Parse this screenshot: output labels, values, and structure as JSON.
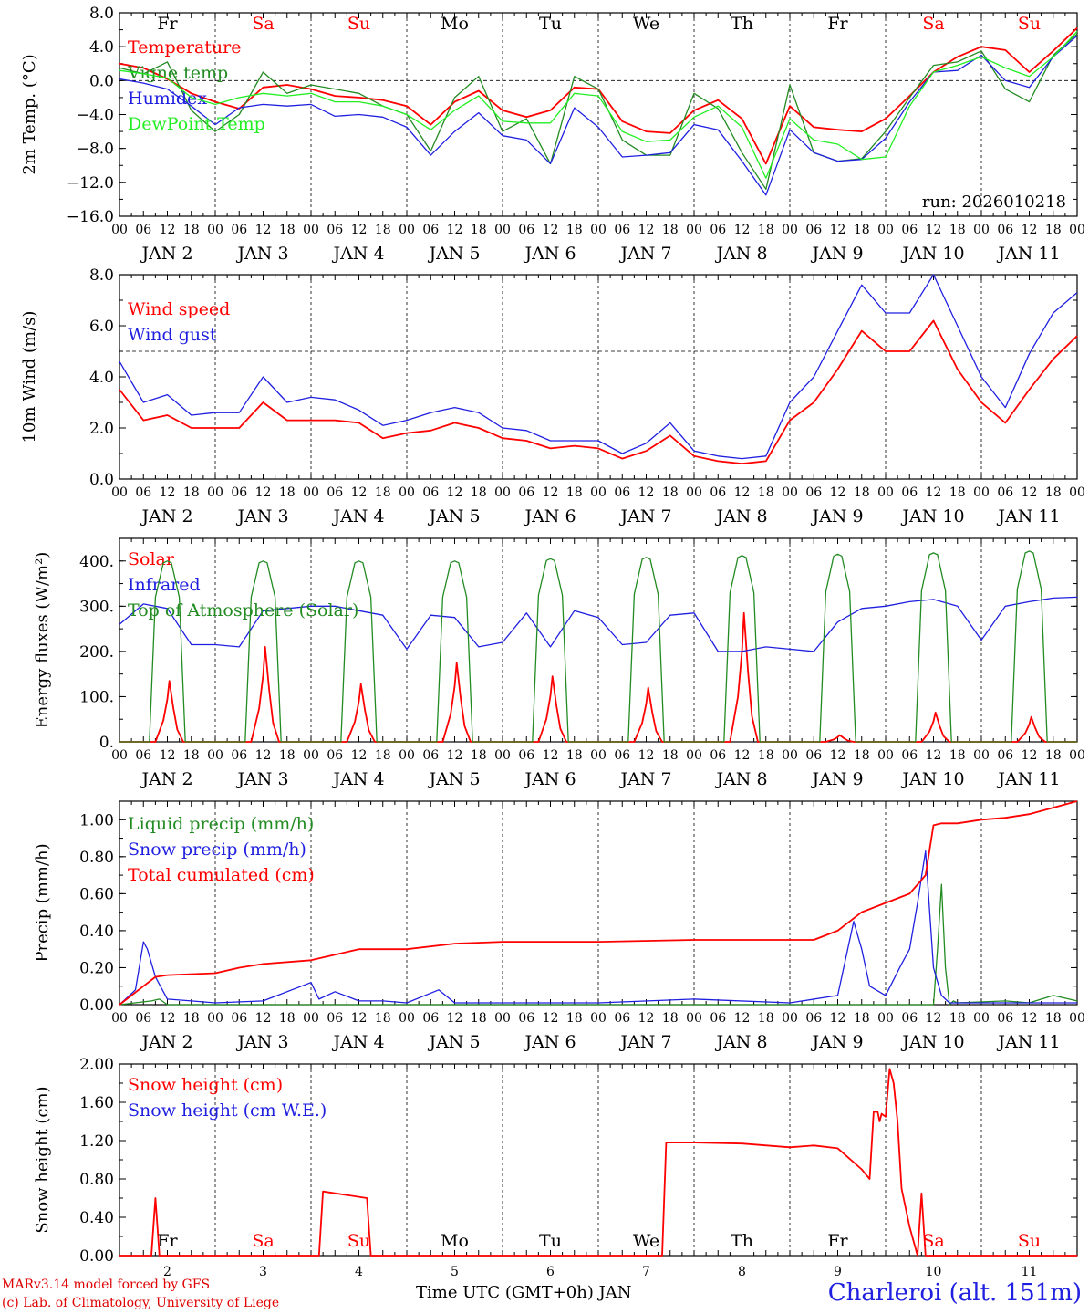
{
  "days": [
    {
      "label": "JAN 2",
      "dow": "Fr"
    },
    {
      "label": "JAN 3",
      "dow": "Sa"
    },
    {
      "label": "JAN 4",
      "dow": "Su"
    },
    {
      "label": "JAN 5",
      "dow": "Mo"
    },
    {
      "label": "JAN 6",
      "dow": "Tu"
    },
    {
      "label": "JAN 7",
      "dow": "We"
    },
    {
      "label": "JAN 8",
      "dow": "Th"
    },
    {
      "label": "JAN 9",
      "dow": "Fr"
    },
    {
      "label": "JAN 10",
      "dow": "Sa"
    },
    {
      "label": "JAN 11",
      "dow": "Su"
    }
  ],
  "weekend_days": [
    "Sa",
    "Su"
  ],
  "hour_ticks": [
    "00",
    "06",
    "12",
    "18"
  ],
  "colors": {
    "red": "#ff0000",
    "green": "#228b22",
    "blue": "#1f1fe0",
    "lightgreen": "#22ee22",
    "black": "#000000"
  },
  "chart_data": [
    {
      "type": "line",
      "id": "temp",
      "ylabel": "2m Temp. (°C)",
      "ylim": [
        -16,
        8
      ],
      "yticks": [
        "8.0",
        "4.0",
        "0.0",
        "−4.0",
        "−8.0",
        "−12.0",
        "−16.0"
      ],
      "ytick_values": [
        8,
        4,
        0,
        -4,
        -8,
        -12,
        -16
      ],
      "ref_line": 0,
      "annotation": "run: 2026010218",
      "series": [
        {
          "name": "Temperature",
          "color": "red",
          "x": [
            0,
            6,
            12,
            18,
            24,
            30,
            36,
            42,
            48,
            54,
            60,
            66,
            72,
            78,
            84,
            90,
            96,
            102,
            108,
            114,
            120,
            126,
            132,
            138,
            144,
            150,
            156,
            162,
            168,
            174,
            180,
            186,
            192,
            198,
            204,
            210,
            216,
            222,
            228,
            234,
            240
          ],
          "values": [
            2.0,
            1.5,
            0.2,
            -1.5,
            -2.5,
            -3.3,
            -0.8,
            -0.5,
            -1.0,
            -1.8,
            -2.0,
            -2.3,
            -3.0,
            -5.2,
            -2.5,
            -1.2,
            -3.5,
            -4.3,
            -3.5,
            -0.8,
            -1.0,
            -4.8,
            -6.0,
            -6.2,
            -3.5,
            -2.3,
            -4.5,
            -9.8,
            -3.0,
            -5.5,
            -5.8,
            -6.0,
            -4.5,
            -1.8,
            1.0,
            2.8,
            4.0,
            3.6,
            1.0,
            3.5,
            6.2
          ]
        },
        {
          "name": "Vigne temp",
          "color": "green",
          "x": [
            0,
            6,
            12,
            18,
            24,
            30,
            36,
            42,
            48,
            54,
            60,
            66,
            72,
            78,
            84,
            90,
            96,
            102,
            108,
            114,
            120,
            126,
            132,
            138,
            144,
            150,
            156,
            162,
            168,
            174,
            180,
            186,
            192,
            198,
            204,
            210,
            216,
            222,
            228,
            234,
            240
          ],
          "values": [
            1.5,
            0.8,
            2.2,
            -3.5,
            -6.0,
            -4.0,
            1.0,
            -1.5,
            -0.5,
            -1.0,
            -1.5,
            -3.0,
            -4.0,
            -8.3,
            -2.0,
            0.5,
            -6.0,
            -4.5,
            -9.8,
            0.5,
            -1.0,
            -7.0,
            -8.8,
            -8.8,
            -1.5,
            -3.3,
            -8.5,
            -12.8,
            -0.5,
            -8.5,
            -9.5,
            -9.2,
            -6.0,
            -2.0,
            1.8,
            2.2,
            3.5,
            -1.0,
            -2.5,
            3.0,
            5.5
          ]
        },
        {
          "name": "Humidex",
          "color": "blue",
          "x": [
            0,
            6,
            12,
            18,
            24,
            30,
            36,
            42,
            48,
            54,
            60,
            66,
            72,
            78,
            84,
            90,
            96,
            102,
            108,
            114,
            120,
            126,
            132,
            138,
            144,
            150,
            156,
            162,
            168,
            174,
            180,
            186,
            192,
            198,
            204,
            210,
            216,
            222,
            228,
            234,
            240
          ],
          "values": [
            0.2,
            -0.3,
            -1.0,
            -3.0,
            -5.2,
            -3.2,
            -2.8,
            -3.0,
            -2.8,
            -4.2,
            -4.0,
            -4.3,
            -5.5,
            -8.8,
            -6.0,
            -3.8,
            -6.5,
            -7.0,
            -9.8,
            -3.2,
            -5.5,
            -9.0,
            -8.8,
            -8.5,
            -5.2,
            -5.8,
            -9.5,
            -13.5,
            -5.8,
            -8.5,
            -9.5,
            -9.3,
            -6.8,
            -2.5,
            1.0,
            1.2,
            3.0,
            0.0,
            -0.8,
            2.8,
            5.3
          ]
        },
        {
          "name": "DewPoint Temp",
          "color": "lightgreen",
          "x": [
            0,
            6,
            12,
            18,
            24,
            30,
            36,
            42,
            48,
            54,
            60,
            66,
            72,
            78,
            84,
            90,
            96,
            102,
            108,
            114,
            120,
            126,
            132,
            138,
            144,
            150,
            156,
            162,
            168,
            174,
            180,
            186,
            192,
            198,
            204,
            210,
            216,
            222,
            228,
            234,
            240
          ],
          "values": [
            1.2,
            0.8,
            0.3,
            -2.0,
            -2.8,
            -2.0,
            -1.5,
            -1.8,
            -1.5,
            -2.5,
            -2.5,
            -3.0,
            -4.0,
            -5.8,
            -3.5,
            -1.8,
            -4.8,
            -5.0,
            -5.0,
            -1.5,
            -1.8,
            -6.0,
            -7.2,
            -7.0,
            -4.3,
            -3.0,
            -5.5,
            -11.5,
            -4.5,
            -7.0,
            -7.5,
            -9.3,
            -9.0,
            -3.0,
            1.0,
            1.8,
            2.8,
            1.5,
            0.5,
            2.8,
            5.8
          ]
        }
      ]
    },
    {
      "type": "line",
      "id": "wind",
      "ylabel": "10m Wind (m/s)",
      "ylim": [
        0,
        8
      ],
      "yticks": [
        "8.0",
        "6.0",
        "4.0",
        "2.0",
        "0.0"
      ],
      "ytick_values": [
        8,
        6,
        4,
        2,
        0
      ],
      "ref_line": 5,
      "series": [
        {
          "name": "Wind speed",
          "color": "red",
          "x": [
            0,
            6,
            12,
            18,
            24,
            30,
            36,
            42,
            48,
            54,
            60,
            66,
            72,
            78,
            84,
            90,
            96,
            102,
            108,
            114,
            120,
            126,
            132,
            138,
            144,
            150,
            156,
            162,
            168,
            174,
            180,
            186,
            192,
            198,
            204,
            210,
            216,
            222,
            228,
            234,
            240
          ],
          "values": [
            3.5,
            2.3,
            2.5,
            2.0,
            2.0,
            2.0,
            3.0,
            2.3,
            2.3,
            2.3,
            2.2,
            1.6,
            1.8,
            1.9,
            2.2,
            2.0,
            1.6,
            1.5,
            1.2,
            1.3,
            1.2,
            0.8,
            1.1,
            1.7,
            0.9,
            0.7,
            0.6,
            0.7,
            2.3,
            3.0,
            4.3,
            5.8,
            5.0,
            5.0,
            6.2,
            4.3,
            3.0,
            2.2,
            3.5,
            4.7,
            5.6
          ]
        },
        {
          "name": "Wind gust",
          "color": "blue",
          "x": [
            0,
            6,
            12,
            18,
            24,
            30,
            36,
            42,
            48,
            54,
            60,
            66,
            72,
            78,
            84,
            90,
            96,
            102,
            108,
            114,
            120,
            126,
            132,
            138,
            144,
            150,
            156,
            162,
            168,
            174,
            180,
            186,
            192,
            198,
            204,
            210,
            216,
            222,
            228,
            234,
            240
          ],
          "values": [
            4.6,
            3.0,
            3.3,
            2.5,
            2.6,
            2.6,
            4.0,
            3.0,
            3.2,
            3.1,
            2.7,
            2.1,
            2.3,
            2.6,
            2.8,
            2.6,
            2.0,
            1.9,
            1.5,
            1.5,
            1.5,
            1.0,
            1.4,
            2.2,
            1.1,
            0.9,
            0.8,
            0.9,
            3.0,
            4.0,
            5.8,
            7.6,
            6.5,
            6.5,
            8.0,
            6.0,
            4.0,
            2.8,
            4.9,
            6.5,
            7.3
          ]
        }
      ]
    },
    {
      "type": "line",
      "id": "energy",
      "ylabel": "Energy fluxes (W/m²)",
      "ylim": [
        0,
        450
      ],
      "yticks": [
        "400.",
        "300.",
        "200.",
        "100.",
        "0."
      ],
      "ytick_values": [
        400,
        300,
        200,
        100,
        0
      ],
      "series": [
        {
          "name": "Solar",
          "color": "red",
          "kind": "daily_peaks",
          "values": [
            135,
            210,
            128,
            175,
            145,
            120,
            285,
            15,
            65,
            55
          ]
        },
        {
          "name": "Infrared",
          "color": "blue",
          "x": [
            0,
            6,
            12,
            18,
            24,
            30,
            36,
            42,
            48,
            54,
            60,
            66,
            72,
            78,
            84,
            90,
            96,
            102,
            108,
            114,
            120,
            126,
            132,
            138,
            144,
            150,
            156,
            162,
            168,
            174,
            180,
            186,
            192,
            198,
            204,
            210,
            216,
            222,
            228,
            234,
            240
          ],
          "values": [
            260,
            305,
            295,
            215,
            215,
            210,
            290,
            295,
            300,
            300,
            290,
            280,
            205,
            280,
            275,
            210,
            220,
            285,
            210,
            290,
            275,
            215,
            220,
            280,
            285,
            200,
            200,
            210,
            205,
            200,
            265,
            295,
            300,
            310,
            315,
            300,
            225,
            300,
            310,
            318,
            320
          ]
        },
        {
          "name": "Top of Atmosphere (Solar)",
          "color": "green",
          "kind": "daily_peaks",
          "values": [
            400,
            400,
            400,
            400,
            405,
            408,
            412,
            415,
            418,
            422
          ]
        }
      ]
    },
    {
      "type": "line",
      "id": "precip",
      "ylabel": "Precip (mm/h)",
      "ylim": [
        0,
        1.1
      ],
      "yticks": [
        "1.00",
        "0.80",
        "0.60",
        "0.40",
        "0.20",
        "0.00"
      ],
      "ytick_values": [
        1.0,
        0.8,
        0.6,
        0.4,
        0.2,
        0.0
      ],
      "series": [
        {
          "name": "Liquid precip (mm/h)",
          "color": "green",
          "x": [
            0,
            8,
            10,
            12,
            60,
            120,
            190,
            204,
            205,
            206,
            207,
            208,
            209,
            210,
            222,
            228,
            234,
            240
          ],
          "values": [
            0,
            0.02,
            0.03,
            0,
            0,
            0,
            0,
            0,
            0.3,
            0.65,
            0.2,
            0,
            0.02,
            0.01,
            0.02,
            0.01,
            0.05,
            0.02
          ]
        },
        {
          "name": "Snow precip (mm/h)",
          "color": "blue",
          "x": [
            0,
            4,
            6,
            7,
            9,
            12,
            18,
            24,
            36,
            48,
            50,
            54,
            60,
            66,
            72,
            80,
            84,
            96,
            120,
            144,
            168,
            180,
            184,
            186,
            188,
            192,
            196,
            198,
            200,
            202,
            204,
            206,
            208,
            210,
            240
          ],
          "values": [
            0,
            0.08,
            0.34,
            0.3,
            0.15,
            0.03,
            0.02,
            0.01,
            0.02,
            0.12,
            0.03,
            0.07,
            0.02,
            0.02,
            0.01,
            0.08,
            0.01,
            0.01,
            0.01,
            0.03,
            0.01,
            0.05,
            0.45,
            0.3,
            0.1,
            0.05,
            0.22,
            0.3,
            0.55,
            0.83,
            0.2,
            0.05,
            0.01,
            0.01,
            0.01
          ]
        },
        {
          "name": "Total cumulated (cm)",
          "color": "red",
          "x": [
            0,
            6,
            9,
            12,
            24,
            30,
            36,
            48,
            54,
            60,
            72,
            84,
            96,
            120,
            144,
            168,
            174,
            180,
            186,
            192,
            198,
            202,
            204,
            206,
            210,
            216,
            222,
            228,
            240
          ],
          "values": [
            0,
            0.1,
            0.15,
            0.16,
            0.17,
            0.2,
            0.22,
            0.24,
            0.27,
            0.3,
            0.3,
            0.33,
            0.34,
            0.34,
            0.35,
            0.35,
            0.35,
            0.4,
            0.5,
            0.55,
            0.6,
            0.7,
            0.97,
            0.98,
            0.98,
            1.0,
            1.01,
            1.03,
            1.1
          ]
        }
      ]
    },
    {
      "type": "line",
      "id": "snow",
      "ylabel": "Snow height (cm)",
      "ylim": [
        0,
        2
      ],
      "yticks": [
        "2.00",
        "1.60",
        "1.20",
        "0.80",
        "0.40",
        "0.00"
      ],
      "ytick_values": [
        2.0,
        1.6,
        1.2,
        0.8,
        0.4,
        0.0
      ],
      "series": [
        {
          "name": "Snow height (cm)",
          "color": "red",
          "x": [
            0,
            8,
            9,
            10,
            50,
            51,
            62,
            63,
            136,
            137,
            144,
            156,
            168,
            174,
            180,
            186,
            187,
            188,
            189,
            190,
            190.5,
            191,
            192,
            193,
            194,
            195,
            196,
            198,
            200,
            201,
            202,
            203,
            240
          ],
          "values": [
            0,
            0,
            0.6,
            0,
            0,
            0.67,
            0.6,
            0,
            0,
            1.18,
            1.18,
            1.17,
            1.13,
            1.15,
            1.12,
            0.9,
            0.85,
            0.8,
            1.5,
            1.5,
            1.4,
            1.48,
            1.45,
            1.95,
            1.8,
            1.4,
            0.7,
            0.3,
            0,
            0.65,
            0,
            0,
            0
          ]
        },
        {
          "name": "Snow height (cm W.E.)",
          "color": "blue",
          "x": [],
          "values": []
        }
      ]
    }
  ],
  "bottom_axis": {
    "day_numbers": [
      "2",
      "3",
      "4",
      "5",
      "6",
      "7",
      "8",
      "9",
      "10",
      "11"
    ],
    "xlabel": "Time UTC (GMT+0h) JAN"
  },
  "footer": {
    "credit1": "MARv3.14 model forced by GFS",
    "credit2": "(c) Lab. of Climatology, University of Liege",
    "station": "Charleroi (alt. 151m)"
  }
}
